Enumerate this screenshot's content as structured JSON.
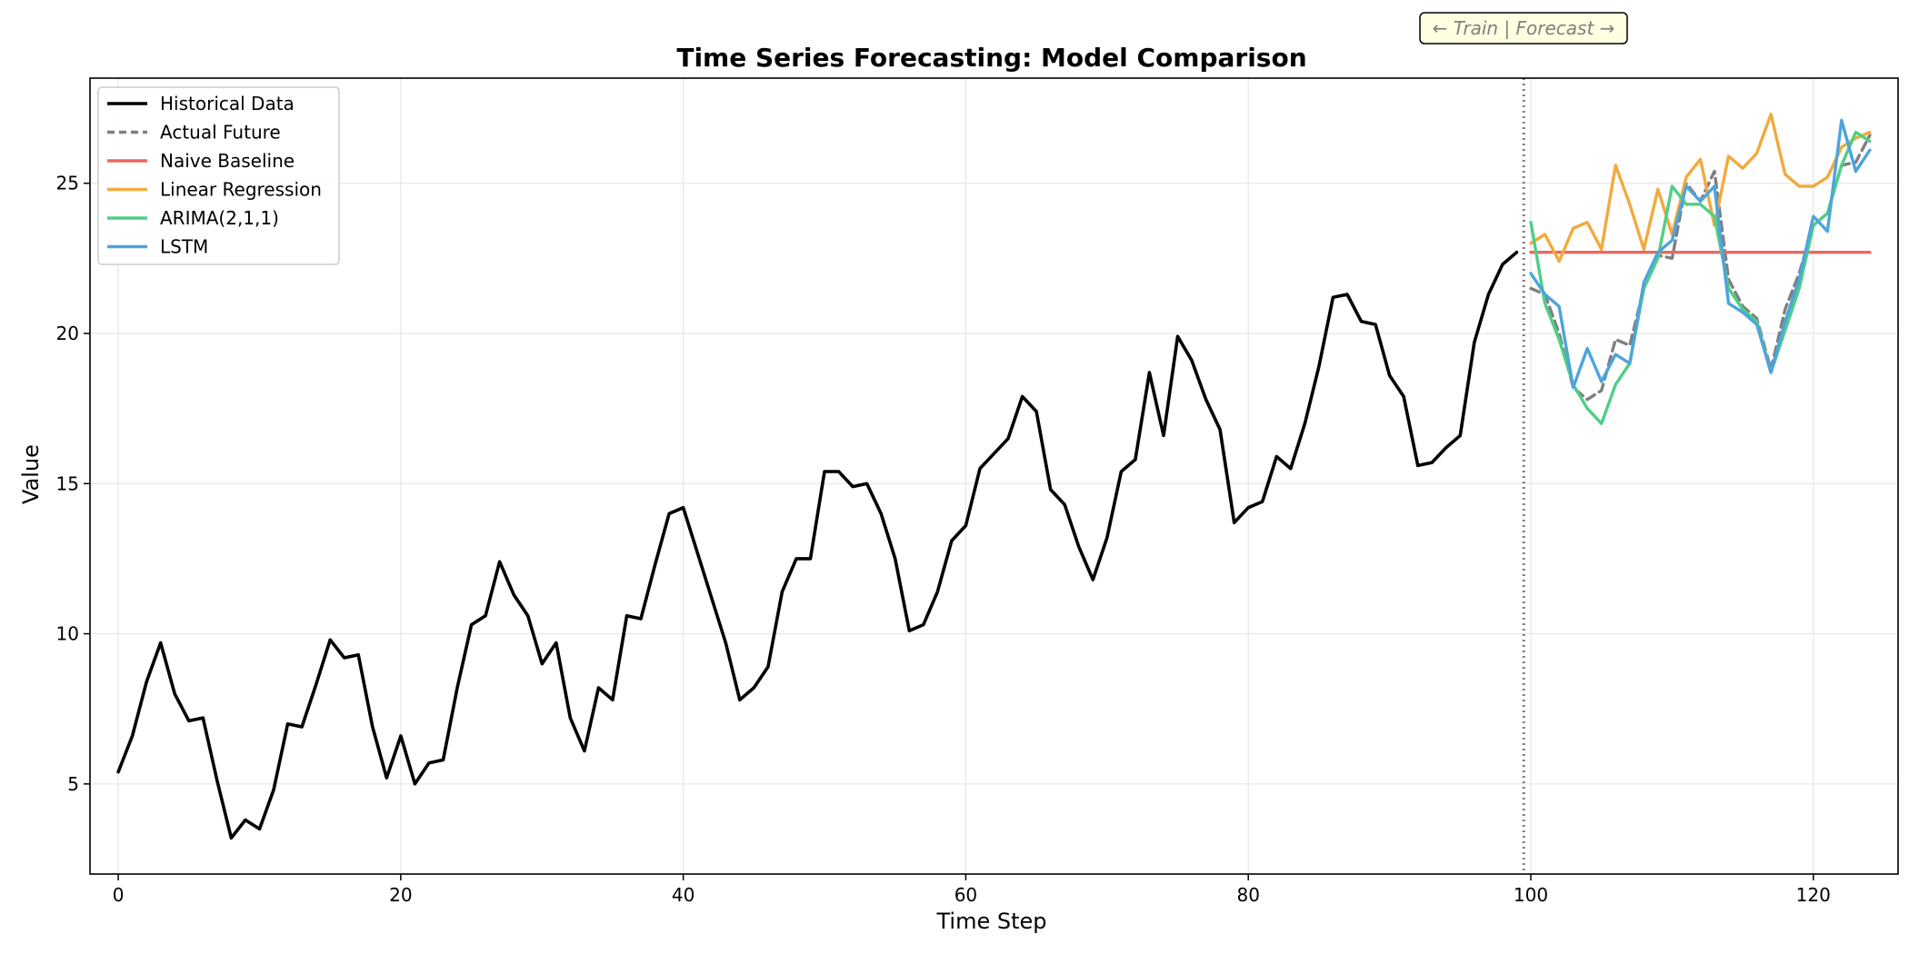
{
  "chart_data": {
    "type": "line",
    "title": "Time Series Forecasting: Model Comparison",
    "xlabel": "Time Step",
    "ylabel": "Value",
    "xlim": [
      -2,
      126
    ],
    "ylim": [
      2.0,
      28.5
    ],
    "xticks": [
      0,
      20,
      40,
      60,
      80,
      100,
      120
    ],
    "yticks": [
      5,
      10,
      15,
      20,
      25
    ],
    "grid": true,
    "legend_position": "upper-left",
    "train_forecast_split": 99.5,
    "annotation": "← Train | Forecast →",
    "series": [
      {
        "name": "Historical Data",
        "color": "#000000",
        "style": "solid",
        "x_start": 0,
        "values": [
          5.4,
          6.6,
          8.4,
          9.7,
          8.0,
          7.1,
          7.2,
          5.1,
          3.2,
          3.8,
          3.5,
          4.8,
          7.0,
          6.9,
          8.3,
          9.8,
          9.2,
          9.3,
          6.9,
          5.2,
          6.6,
          5.0,
          5.7,
          5.8,
          8.2,
          10.3,
          10.6,
          12.4,
          11.3,
          10.6,
          9.0,
          9.7,
          7.2,
          6.1,
          8.2,
          7.8,
          10.6,
          10.5,
          12.3,
          14.0,
          14.2,
          12.7,
          11.2,
          9.7,
          7.8,
          8.2,
          8.9,
          11.4,
          12.5,
          12.5,
          15.4,
          15.4,
          14.9,
          15.0,
          14.0,
          12.5,
          10.1,
          10.3,
          11.4,
          13.1,
          13.6,
          15.5,
          16.0,
          16.5,
          17.9,
          17.4,
          14.8,
          14.3,
          12.9,
          11.8,
          13.2,
          15.4,
          15.8,
          18.7,
          16.6,
          19.9,
          19.1,
          17.8,
          16.8,
          13.7,
          14.2,
          14.4,
          15.9,
          15.5,
          17.0,
          18.9,
          21.2,
          21.3,
          20.4,
          20.3,
          18.6,
          17.9,
          15.6,
          15.7,
          16.2,
          16.6,
          19.7,
          21.3,
          22.3,
          22.7
        ]
      },
      {
        "name": "Actual Future",
        "color": "#7f7f7f",
        "style": "dashed",
        "x_start": 100,
        "values": [
          21.5,
          21.3,
          20.0,
          18.2,
          17.8,
          18.1,
          19.8,
          19.6,
          21.5,
          22.6,
          22.5,
          25.0,
          24.4,
          25.4,
          21.8,
          20.9,
          20.5,
          18.8,
          20.8,
          22.0,
          23.6,
          24.0,
          25.6,
          25.7,
          26.6
        ]
      },
      {
        "name": "Naive Baseline",
        "color": "#e8685f",
        "style": "solid",
        "x_start": 100,
        "values": [
          22.7,
          22.7,
          22.7,
          22.7,
          22.7,
          22.7,
          22.7,
          22.7,
          22.7,
          22.7,
          22.7,
          22.7,
          22.7,
          22.7,
          22.7,
          22.7,
          22.7,
          22.7,
          22.7,
          22.7,
          22.7,
          22.7,
          22.7,
          22.7,
          22.7
        ]
      },
      {
        "name": "Linear Regression",
        "color": "#f2aa3e",
        "style": "solid",
        "x_start": 100,
        "values": [
          23.0,
          23.3,
          22.4,
          23.5,
          23.7,
          22.8,
          25.6,
          24.3,
          22.8,
          24.8,
          23.3,
          25.2,
          25.8,
          23.6,
          25.9,
          25.5,
          26.0,
          27.3,
          25.3,
          24.9,
          24.9,
          25.2,
          26.2,
          26.5,
          26.7
        ]
      },
      {
        "name": "ARIMA(2,1,1)",
        "color": "#4fcf85",
        "style": "solid",
        "x_start": 100,
        "values": [
          23.7,
          21.0,
          19.8,
          18.3,
          17.5,
          17.0,
          18.3,
          19.0,
          21.5,
          22.5,
          24.9,
          24.3,
          24.3,
          23.9,
          21.5,
          20.8,
          20.4,
          18.7,
          20.1,
          21.5,
          23.6,
          24.0,
          25.6,
          26.7,
          26.4
        ]
      },
      {
        "name": "LSTM",
        "color": "#4ea4dc",
        "style": "solid",
        "x_start": 100,
        "values": [
          22.0,
          21.3,
          20.9,
          18.2,
          19.5,
          18.4,
          19.3,
          19.0,
          21.7,
          22.7,
          23.1,
          24.9,
          24.4,
          24.9,
          21.0,
          20.7,
          20.3,
          18.7,
          20.4,
          21.8,
          23.9,
          23.4,
          27.1,
          25.4,
          26.1
        ]
      }
    ]
  }
}
